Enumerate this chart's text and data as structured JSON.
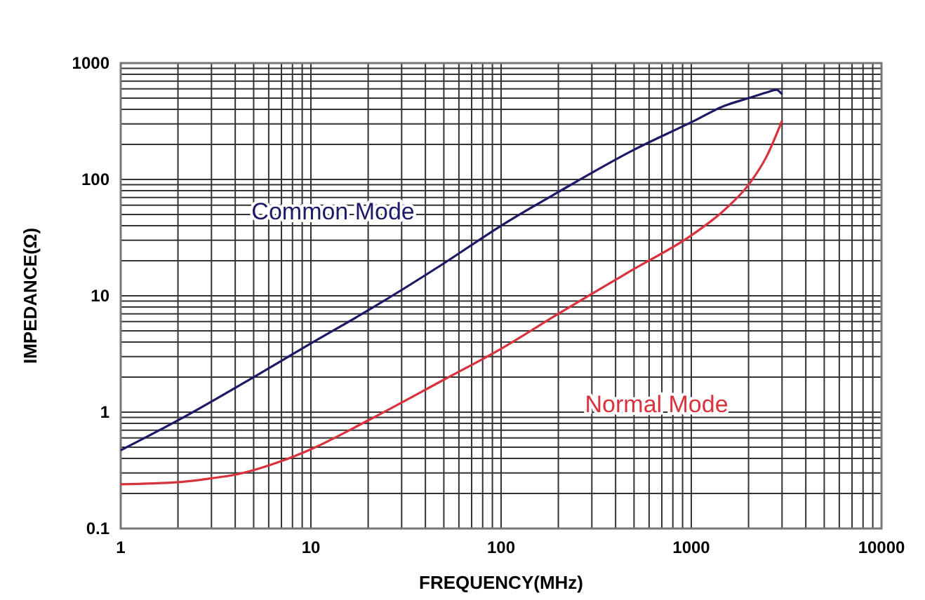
{
  "chart_data": {
    "type": "line",
    "xlabel": "FREQUENCY(MHz)",
    "ylabel": "IMPEDANCE(Ω)",
    "log": "xy",
    "grid": true,
    "legend": false,
    "xlim": [
      1,
      10000
    ],
    "xticks": [
      1,
      10,
      100,
      1000,
      10000
    ],
    "ylim": [
      0.1,
      1000
    ],
    "yticks": [
      0.1,
      1,
      10,
      100,
      1000
    ],
    "series": [
      {
        "name": "Common Mode",
        "color": "#1c1a66",
        "x": [
          1,
          2,
          5,
          10,
          20,
          50,
          100,
          200,
          500,
          1000,
          1500,
          2000,
          2500,
          2800,
          3000
        ],
        "values": [
          0.47,
          0.85,
          2.0,
          3.9,
          7.5,
          19,
          40,
          78,
          180,
          310,
          430,
          500,
          560,
          590,
          540
        ]
      },
      {
        "name": "Normal Mode",
        "color": "#d8323c",
        "x": [
          1,
          2,
          3,
          4,
          7,
          10,
          20,
          50,
          100,
          200,
          500,
          1000,
          1500,
          2000,
          2500,
          3000
        ],
        "values": [
          0.24,
          0.25,
          0.27,
          0.29,
          0.38,
          0.48,
          0.85,
          1.9,
          3.5,
          7,
          17,
          33,
          55,
          90,
          160,
          320
        ]
      }
    ]
  }
}
